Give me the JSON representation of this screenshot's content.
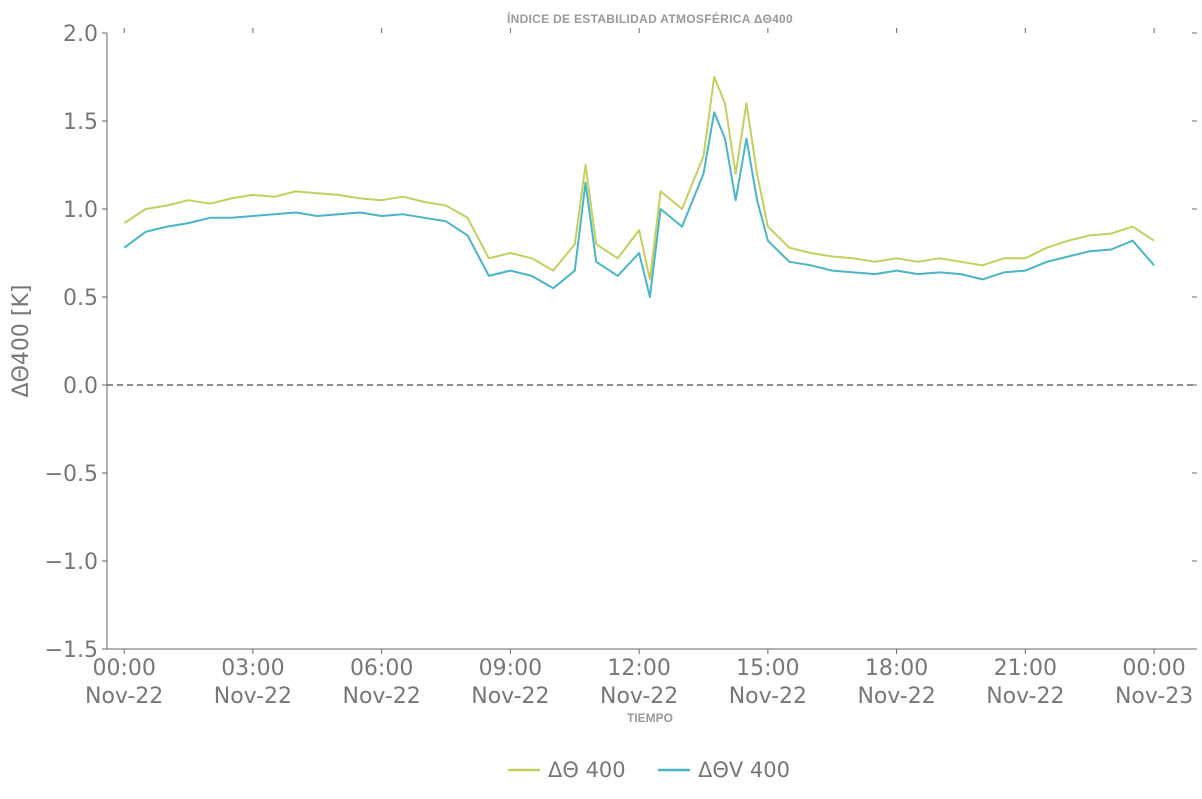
{
  "chart_data": {
    "type": "line",
    "title": "ÍNDICE DE ESTABILIDAD ATMOSFÉRICA ΔΘ400",
    "xlabel": "TIEMPO",
    "ylabel": "ΔΘ400 [K]",
    "ylim": [
      -1.5,
      2.0
    ],
    "xlim": [
      -0.4,
      25.0
    ],
    "legend_position": "bottom-center",
    "grid": false,
    "reference_line": {
      "y": 0.0,
      "style": "dashed",
      "color": "#666666"
    },
    "yticks": [
      {
        "value": 2.0,
        "label": "2.0"
      },
      {
        "value": 1.5,
        "label": "1.5"
      },
      {
        "value": 1.0,
        "label": "1.0"
      },
      {
        "value": 0.5,
        "label": "0.5"
      },
      {
        "value": 0.0,
        "label": "0.0"
      },
      {
        "value": -0.5,
        "label": "−0.5"
      },
      {
        "value": -1.0,
        "label": "−1.0"
      },
      {
        "value": -1.5,
        "label": "−1.5"
      }
    ],
    "xticks": [
      {
        "value": 0,
        "label1": "00:00",
        "label2": "Nov-22"
      },
      {
        "value": 3,
        "label1": "03:00",
        "label2": "Nov-22"
      },
      {
        "value": 6,
        "label1": "06:00",
        "label2": "Nov-22"
      },
      {
        "value": 9,
        "label1": "09:00",
        "label2": "Nov-22"
      },
      {
        "value": 12,
        "label1": "12:00",
        "label2": "Nov-22"
      },
      {
        "value": 15,
        "label1": "15:00",
        "label2": "Nov-22"
      },
      {
        "value": 18,
        "label1": "18:00",
        "label2": "Nov-22"
      },
      {
        "value": 21,
        "label1": "21:00",
        "label2": "Nov-22"
      },
      {
        "value": 24,
        "label1": "00:00",
        "label2": "Nov-23"
      }
    ],
    "x": [
      0.0,
      0.5,
      1.0,
      1.5,
      2.0,
      2.5,
      3.0,
      3.5,
      4.0,
      4.5,
      5.0,
      5.5,
      6.0,
      6.5,
      7.0,
      7.5,
      8.0,
      8.5,
      9.0,
      9.5,
      10.0,
      10.5,
      10.75,
      11.0,
      11.5,
      12.0,
      12.25,
      12.5,
      13.0,
      13.5,
      13.75,
      14.0,
      14.25,
      14.5,
      14.75,
      15.0,
      15.5,
      16.0,
      16.5,
      17.0,
      17.5,
      18.0,
      18.5,
      19.0,
      19.5,
      20.0,
      20.5,
      21.0,
      21.5,
      22.0,
      22.5,
      23.0,
      23.5,
      24.0
    ],
    "series": [
      {
        "name": "ΔΘ 400",
        "color": "#c5cf5c",
        "values": [
          0.92,
          1.0,
          1.02,
          1.05,
          1.03,
          1.06,
          1.08,
          1.07,
          1.1,
          1.09,
          1.08,
          1.06,
          1.05,
          1.07,
          1.04,
          1.02,
          0.95,
          0.72,
          0.75,
          0.72,
          0.65,
          0.8,
          1.25,
          0.8,
          0.72,
          0.88,
          0.6,
          1.1,
          1.0,
          1.3,
          1.75,
          1.6,
          1.2,
          1.6,
          1.2,
          0.9,
          0.78,
          0.75,
          0.73,
          0.72,
          0.7,
          0.72,
          0.7,
          0.72,
          0.7,
          0.68,
          0.72,
          0.72,
          0.78,
          0.82,
          0.85,
          0.86,
          0.9,
          0.82
        ]
      },
      {
        "name": "ΔΘV 400",
        "color": "#4ab5c4",
        "values": [
          0.78,
          0.87,
          0.9,
          0.92,
          0.95,
          0.95,
          0.96,
          0.97,
          0.98,
          0.96,
          0.97,
          0.98,
          0.96,
          0.97,
          0.95,
          0.93,
          0.85,
          0.62,
          0.65,
          0.62,
          0.55,
          0.65,
          1.15,
          0.7,
          0.62,
          0.75,
          0.5,
          1.0,
          0.9,
          1.2,
          1.55,
          1.4,
          1.05,
          1.4,
          1.05,
          0.82,
          0.7,
          0.68,
          0.65,
          0.64,
          0.63,
          0.65,
          0.63,
          0.64,
          0.63,
          0.6,
          0.64,
          0.65,
          0.7,
          0.73,
          0.76,
          0.77,
          0.82,
          0.68
        ]
      }
    ]
  }
}
